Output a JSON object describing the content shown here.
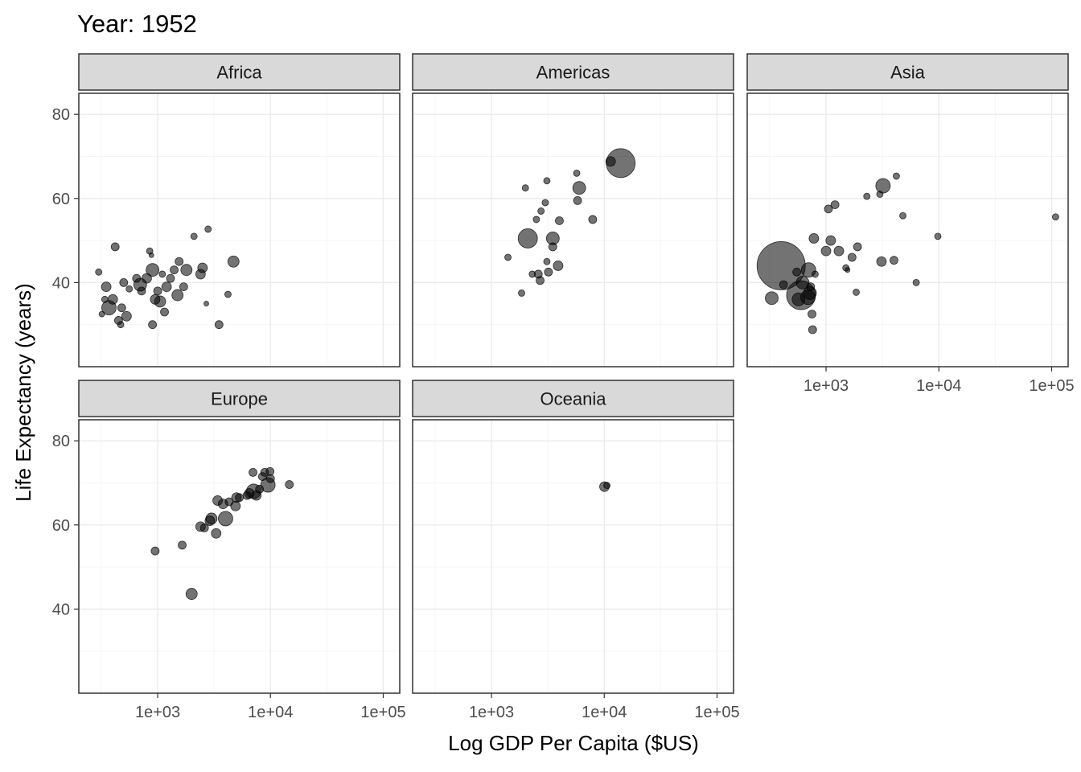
{
  "chart_data": {
    "type": "scatter",
    "title": "Year: 1952",
    "xlabel": "Log GDP Per Capita ($US)",
    "ylabel": "Life Expectancy (years)",
    "x_scale": "log10",
    "xlim": [
      200,
      140000
    ],
    "ylim": [
      20,
      85
    ],
    "x_ticks": [
      1000,
      10000,
      100000
    ],
    "x_tick_labels": [
      "1e+03",
      "1e+04",
      "1e+05"
    ],
    "y_ticks": [
      40,
      60,
      80
    ],
    "y_tick_labels": [
      "40",
      "60",
      "80"
    ],
    "facets": [
      {
        "name": "Africa",
        "points": [
          {
            "x": 300,
            "y": 42.5,
            "pop": 4.0
          },
          {
            "x": 320,
            "y": 32.5,
            "pop": 3.5
          },
          {
            "x": 340,
            "y": 36.0,
            "pop": 4.0
          },
          {
            "x": 350,
            "y": 39.0,
            "pop": 6.0
          },
          {
            "x": 370,
            "y": 34.0,
            "pop": 9.0
          },
          {
            "x": 400,
            "y": 36.0,
            "pop": 6.0
          },
          {
            "x": 420,
            "y": 48.5,
            "pop": 5.0
          },
          {
            "x": 450,
            "y": 31.0,
            "pop": 5.0
          },
          {
            "x": 470,
            "y": 30.0,
            "pop": 4.0
          },
          {
            "x": 480,
            "y": 34.0,
            "pop": 5.0
          },
          {
            "x": 500,
            "y": 40.0,
            "pop": 5.0
          },
          {
            "x": 530,
            "y": 32.0,
            "pop": 6.0
          },
          {
            "x": 560,
            "y": 38.5,
            "pop": 4.0
          },
          {
            "x": 650,
            "y": 41.0,
            "pop": 5.0
          },
          {
            "x": 700,
            "y": 39.5,
            "pop": 8.0
          },
          {
            "x": 720,
            "y": 38.0,
            "pop": 5.0
          },
          {
            "x": 800,
            "y": 41.0,
            "pop": 6.0
          },
          {
            "x": 850,
            "y": 47.5,
            "pop": 4.0
          },
          {
            "x": 880,
            "y": 46.5,
            "pop": 3.0
          },
          {
            "x": 900,
            "y": 43.0,
            "pop": 8.0
          },
          {
            "x": 900,
            "y": 30.0,
            "pop": 5.0
          },
          {
            "x": 950,
            "y": 36.0,
            "pop": 6.0
          },
          {
            "x": 1000,
            "y": 38.0,
            "pop": 5.0
          },
          {
            "x": 1050,
            "y": 35.5,
            "pop": 7.0
          },
          {
            "x": 1100,
            "y": 42.0,
            "pop": 4.0
          },
          {
            "x": 1150,
            "y": 33.0,
            "pop": 5.0
          },
          {
            "x": 1200,
            "y": 39.0,
            "pop": 6.0
          },
          {
            "x": 1300,
            "y": 41.0,
            "pop": 5.0
          },
          {
            "x": 1400,
            "y": 43.0,
            "pop": 5.0
          },
          {
            "x": 1500,
            "y": 37.0,
            "pop": 7.0
          },
          {
            "x": 1550,
            "y": 45.0,
            "pop": 5.0
          },
          {
            "x": 1700,
            "y": 39.0,
            "pop": 5.0
          },
          {
            "x": 1800,
            "y": 43.0,
            "pop": 7.0
          },
          {
            "x": 2100,
            "y": 51.0,
            "pop": 4.0
          },
          {
            "x": 2400,
            "y": 42.0,
            "pop": 6.0
          },
          {
            "x": 2500,
            "y": 43.5,
            "pop": 6.0
          },
          {
            "x": 2700,
            "y": 35.0,
            "pop": 3.0
          },
          {
            "x": 2800,
            "y": 52.7,
            "pop": 4.0
          },
          {
            "x": 3500,
            "y": 30.0,
            "pop": 5.0
          },
          {
            "x": 4200,
            "y": 37.2,
            "pop": 4.0
          },
          {
            "x": 4700,
            "y": 45.0,
            "pop": 7.0
          }
        ]
      },
      {
        "name": "Americas",
        "points": [
          {
            "x": 1400,
            "y": 46.0,
            "pop": 4.0
          },
          {
            "x": 1850,
            "y": 37.5,
            "pop": 4.0
          },
          {
            "x": 2000,
            "y": 62.5,
            "pop": 4.0
          },
          {
            "x": 2100,
            "y": 50.5,
            "pop": 12.0
          },
          {
            "x": 2300,
            "y": 42.0,
            "pop": 4.0
          },
          {
            "x": 2500,
            "y": 55.0,
            "pop": 4.0
          },
          {
            "x": 2700,
            "y": 40.5,
            "pop": 5.0
          },
          {
            "x": 2600,
            "y": 42.0,
            "pop": 5.0
          },
          {
            "x": 2750,
            "y": 57.0,
            "pop": 4.0
          },
          {
            "x": 3000,
            "y": 59.0,
            "pop": 4.0
          },
          {
            "x": 3100,
            "y": 64.2,
            "pop": 4.0
          },
          {
            "x": 3100,
            "y": 45.0,
            "pop": 4.0
          },
          {
            "x": 3200,
            "y": 42.5,
            "pop": 5.0
          },
          {
            "x": 3500,
            "y": 48.5,
            "pop": 5.0
          },
          {
            "x": 3500,
            "y": 50.5,
            "pop": 8.0
          },
          {
            "x": 3900,
            "y": 44.0,
            "pop": 6.0
          },
          {
            "x": 4000,
            "y": 54.7,
            "pop": 5.0
          },
          {
            "x": 5700,
            "y": 66.0,
            "pop": 4.0
          },
          {
            "x": 5800,
            "y": 59.5,
            "pop": 5.0
          },
          {
            "x": 6000,
            "y": 62.5,
            "pop": 8.0
          },
          {
            "x": 7900,
            "y": 55.0,
            "pop": 5.0
          },
          {
            "x": 11400,
            "y": 68.8,
            "pop": 6.0
          },
          {
            "x": 13990,
            "y": 68.4,
            "pop": 18.0
          }
        ]
      },
      {
        "name": "Asia",
        "points": [
          {
            "x": 330,
            "y": 36.3,
            "pop": 8.0
          },
          {
            "x": 400,
            "y": 44.0,
            "pop": 30.0
          },
          {
            "x": 420,
            "y": 39.5,
            "pop": 5.0
          },
          {
            "x": 550,
            "y": 42.5,
            "pop": 5.0
          },
          {
            "x": 570,
            "y": 36.0,
            "pop": 8.0
          },
          {
            "x": 600,
            "y": 37.0,
            "pop": 18.0
          },
          {
            "x": 620,
            "y": 40.0,
            "pop": 8.0
          },
          {
            "x": 690,
            "y": 36.5,
            "pop": 9.0
          },
          {
            "x": 700,
            "y": 43.0,
            "pop": 9.0
          },
          {
            "x": 720,
            "y": 37.5,
            "pop": 8.0
          },
          {
            "x": 730,
            "y": 39.0,
            "pop": 5.0
          },
          {
            "x": 750,
            "y": 32.5,
            "pop": 5.0
          },
          {
            "x": 760,
            "y": 28.8,
            "pop": 5.0
          },
          {
            "x": 780,
            "y": 50.5,
            "pop": 6.0
          },
          {
            "x": 800,
            "y": 42.0,
            "pop": 4.0
          },
          {
            "x": 1000,
            "y": 47.5,
            "pop": 6.0
          },
          {
            "x": 1050,
            "y": 57.5,
            "pop": 5.0
          },
          {
            "x": 1100,
            "y": 50.0,
            "pop": 6.0
          },
          {
            "x": 1200,
            "y": 58.5,
            "pop": 5.0
          },
          {
            "x": 1300,
            "y": 47.5,
            "pop": 6.0
          },
          {
            "x": 1500,
            "y": 43.5,
            "pop": 4.0
          },
          {
            "x": 1550,
            "y": 43.0,
            "pop": 3.0
          },
          {
            "x": 1700,
            "y": 46.0,
            "pop": 5.0
          },
          {
            "x": 1850,
            "y": 37.7,
            "pop": 4.0
          },
          {
            "x": 1900,
            "y": 48.5,
            "pop": 5.0
          },
          {
            "x": 2300,
            "y": 60.5,
            "pop": 4.0
          },
          {
            "x": 3000,
            "y": 61.0,
            "pop": 4.0
          },
          {
            "x": 3100,
            "y": 45.0,
            "pop": 6.0
          },
          {
            "x": 3200,
            "y": 63.0,
            "pop": 9.0
          },
          {
            "x": 4000,
            "y": 45.3,
            "pop": 5.0
          },
          {
            "x": 4200,
            "y": 65.3,
            "pop": 4.0
          },
          {
            "x": 4800,
            "y": 55.9,
            "pop": 4.0
          },
          {
            "x": 6300,
            "y": 40.0,
            "pop": 4.0
          },
          {
            "x": 9800,
            "y": 51.0,
            "pop": 4.0
          },
          {
            "x": 108382,
            "y": 55.6,
            "pop": 4.0
          }
        ]
      },
      {
        "name": "Europe",
        "points": [
          {
            "x": 950,
            "y": 53.8,
            "pop": 5.0
          },
          {
            "x": 1650,
            "y": 55.2,
            "pop": 5.0
          },
          {
            "x": 2000,
            "y": 43.6,
            "pop": 7.0
          },
          {
            "x": 2400,
            "y": 59.6,
            "pop": 6.0
          },
          {
            "x": 2600,
            "y": 59.3,
            "pop": 5.0
          },
          {
            "x": 2900,
            "y": 61.0,
            "pop": 6.0
          },
          {
            "x": 3000,
            "y": 61.5,
            "pop": 7.0
          },
          {
            "x": 3300,
            "y": 58.0,
            "pop": 6.0
          },
          {
            "x": 3400,
            "y": 65.8,
            "pop": 6.0
          },
          {
            "x": 3800,
            "y": 65.0,
            "pop": 6.0
          },
          {
            "x": 4000,
            "y": 61.5,
            "pop": 9.0
          },
          {
            "x": 4300,
            "y": 65.5,
            "pop": 5.0
          },
          {
            "x": 4900,
            "y": 64.5,
            "pop": 6.0
          },
          {
            "x": 5000,
            "y": 66.5,
            "pop": 6.0
          },
          {
            "x": 5300,
            "y": 66.5,
            "pop": 5.0
          },
          {
            "x": 6200,
            "y": 67.0,
            "pop": 5.0
          },
          {
            "x": 6500,
            "y": 67.5,
            "pop": 6.0
          },
          {
            "x": 7100,
            "y": 68.0,
            "pop": 9.0
          },
          {
            "x": 7000,
            "y": 72.5,
            "pop": 5.0
          },
          {
            "x": 7500,
            "y": 67.0,
            "pop": 6.0
          },
          {
            "x": 8000,
            "y": 68.5,
            "pop": 5.0
          },
          {
            "x": 8500,
            "y": 71.5,
            "pop": 5.0
          },
          {
            "x": 8900,
            "y": 72.5,
            "pop": 5.0
          },
          {
            "x": 9500,
            "y": 69.5,
            "pop": 9.0
          },
          {
            "x": 9900,
            "y": 72.7,
            "pop": 5.0
          },
          {
            "x": 10000,
            "y": 71.0,
            "pop": 5.0
          },
          {
            "x": 14700,
            "y": 69.6,
            "pop": 5.0
          }
        ]
      },
      {
        "name": "Oceania",
        "points": [
          {
            "x": 10040,
            "y": 69.1,
            "pop": 6.0
          },
          {
            "x": 10557,
            "y": 69.4,
            "pop": 4.0
          }
        ]
      }
    ]
  }
}
